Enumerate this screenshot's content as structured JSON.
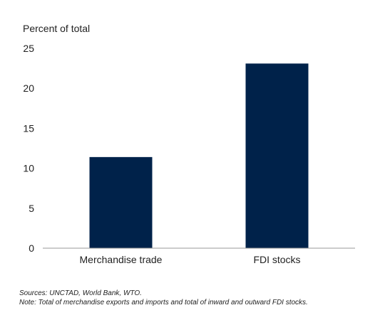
{
  "chart_data": {
    "type": "bar",
    "ylabel": "Percent of total",
    "categories": [
      "Merchandise trade",
      "FDI stocks"
    ],
    "values": [
      11.4,
      23.1
    ],
    "ylim": [
      0,
      25
    ],
    "yticks": [
      0,
      5,
      10,
      15,
      20,
      25
    ],
    "grid": false,
    "bar_color": "#00224a"
  },
  "footnotes": {
    "sources": "Sources: UNCTAD, World Bank, WTO.",
    "note": "Note: Total of merchandise exports and imports and total of inward and outward FDI stocks."
  }
}
